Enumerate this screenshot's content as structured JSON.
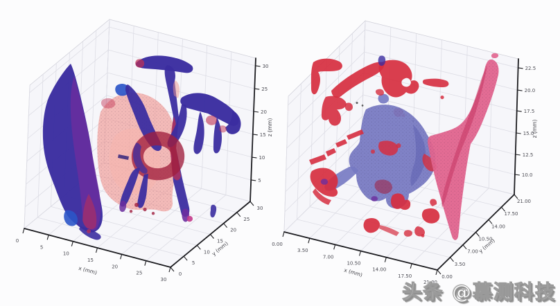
{
  "meta": {
    "watermark": "头条 @慕测科技"
  },
  "palette": {
    "background": "#fcfcfd",
    "pane": "#f6f6fa",
    "grid_line": "#dddde5",
    "axis_line": "#1b1b1f",
    "tick_text": "#4a4a52",
    "indigo": "#3b2da0",
    "indigo_dark": "#281c78",
    "purple": "#6b2d9e",
    "crimson": "#c03052",
    "dark_red": "#a01f3e",
    "red": "#d62e3f",
    "salmon": "#f0958f",
    "salmon_light": "#f6b5ae",
    "slate_blue": "#7679c2",
    "slate_blue_dark": "#5d60b0",
    "rose": "#e2648e",
    "rose_dark": "#c43560",
    "royal_blue": "#2b55c8",
    "magenta": "#c33a8a",
    "speck": "#3a3a3a"
  },
  "chart_data": [
    {
      "id": "left-panel",
      "type": "isosurface-3d",
      "title": "",
      "grid": true,
      "legend": false,
      "axes": {
        "x": {
          "label": "x (mm)",
          "range": [
            0,
            30
          ],
          "ticks": [
            "0",
            "5",
            "10",
            "15",
            "20",
            "25",
            "30"
          ]
        },
        "y": {
          "label": "y (mm)",
          "range": [
            0,
            30
          ],
          "ticks": [
            "0",
            "5",
            "10",
            "15",
            "20",
            "25",
            "30"
          ]
        },
        "z": {
          "label": "z (mm)",
          "range": [
            0,
            32
          ],
          "ticks": [
            "30",
            "25",
            "20",
            "15",
            "10",
            "5"
          ]
        }
      },
      "series": [
        {
          "name": "indigo-surface",
          "color": "#3b2da0"
        },
        {
          "name": "crimson-surface",
          "color": "#c03052"
        },
        {
          "name": "salmon-surface",
          "color": "#f0958f",
          "opacity": 0.6
        }
      ]
    },
    {
      "id": "right-panel",
      "type": "isosurface-3d",
      "title": "",
      "grid": true,
      "legend": false,
      "axes": {
        "x": {
          "label": "x (mm)",
          "range": [
            0,
            21
          ],
          "ticks": [
            "0.00",
            "3.50",
            "7.00",
            "10.50",
            "14.00",
            "17.50",
            "21.00"
          ]
        },
        "y": {
          "label": "y (mm)",
          "range": [
            0,
            21
          ],
          "ticks": [
            "0.00",
            "3.50",
            "7.00",
            "10.50",
            "14.00",
            "17.50",
            "21.00"
          ]
        },
        "z": {
          "label": "z (mm)",
          "range": [
            7.5,
            25
          ],
          "ticks": [
            "22.5",
            "20.0",
            "17.5",
            "15.0",
            "12.5",
            "10.0"
          ]
        }
      },
      "series": [
        {
          "name": "red-surface",
          "color": "#d62e3f"
        },
        {
          "name": "slate-blue-surface",
          "color": "#7679c2"
        },
        {
          "name": "rose-blade-surface",
          "color": "#e2648e"
        }
      ]
    }
  ]
}
